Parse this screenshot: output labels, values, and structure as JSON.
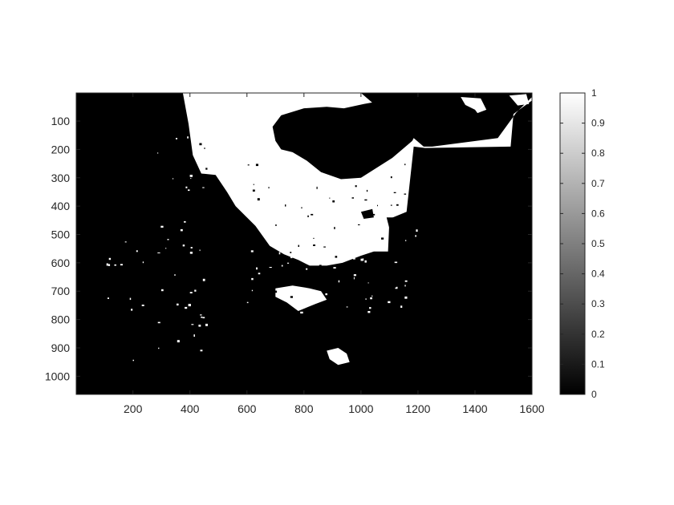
{
  "chart_data": {
    "type": "heatmap",
    "colormap": "gray",
    "image_content": "binary mask, mostly black with white regions in the upper center",
    "xlim": [
      1,
      1600
    ],
    "ylim": [
      1,
      1064
    ],
    "y_direction": "reverse",
    "x_ticks": [
      "200",
      "400",
      "600",
      "800",
      "1000",
      "1200",
      "1400",
      "1600"
    ],
    "y_ticks": [
      "100",
      "200",
      "300",
      "400",
      "500",
      "600",
      "700",
      "800",
      "900",
      "1000"
    ],
    "colorbar": {
      "range": [
        0,
        1
      ],
      "ticks": [
        "0",
        "0.1",
        "0.2",
        "0.3",
        "0.4",
        "0.5",
        "0.6",
        "0.7",
        "0.8",
        "0.9",
        "1"
      ]
    },
    "x_tick_values": [
      200,
      400,
      600,
      800,
      1000,
      1200,
      1400,
      1600
    ],
    "y_tick_values": [
      100,
      200,
      300,
      400,
      500,
      600,
      700,
      800,
      900,
      1000
    ],
    "colorbar_tick_values": [
      0,
      0.1,
      0.2,
      0.3,
      0.4,
      0.5,
      0.6,
      0.7,
      0.8,
      0.9,
      1
    ],
    "white_regions": [
      {
        "name": "upper-white-region",
        "points": [
          [
            375,
            1
          ],
          [
            1000,
            1
          ],
          [
            1220,
            190
          ],
          [
            1250,
            190
          ],
          [
            1480,
            160
          ],
          [
            1545,
            70
          ],
          [
            1600,
            15
          ],
          [
            1600,
            1
          ],
          [
            1610,
            1
          ],
          [
            1610,
            20
          ],
          [
            1535,
            75
          ],
          [
            1525,
            190
          ],
          [
            1225,
            195
          ],
          [
            1185,
            190
          ],
          [
            1160,
            420
          ],
          [
            1100,
            445
          ],
          [
            1095,
            560
          ],
          [
            1045,
            560
          ],
          [
            1000,
            575
          ],
          [
            935,
            600
          ],
          [
            880,
            610
          ],
          [
            820,
            610
          ],
          [
            780,
            590
          ],
          [
            730,
            570
          ],
          [
            680,
            540
          ],
          [
            630,
            470
          ],
          [
            560,
            400
          ],
          [
            530,
            350
          ],
          [
            490,
            290
          ],
          [
            440,
            285
          ],
          [
            410,
            220
          ],
          [
            395,
            110
          ],
          [
            375,
            1
          ]
        ]
      },
      {
        "name": "white-blob-1",
        "points": [
          [
            700,
            690
          ],
          [
            760,
            680
          ],
          [
            820,
            690
          ],
          [
            860,
            700
          ],
          [
            880,
            730
          ],
          [
            840,
            745
          ],
          [
            780,
            770
          ],
          [
            740,
            740
          ],
          [
            700,
            720
          ]
        ]
      },
      {
        "name": "white-blob-2",
        "points": [
          [
            880,
            910
          ],
          [
            920,
            900
          ],
          [
            950,
            920
          ],
          [
            960,
            950
          ],
          [
            920,
            960
          ],
          [
            890,
            940
          ]
        ]
      },
      {
        "name": "white-blob-3",
        "points": [
          [
            1350,
            15
          ],
          [
            1420,
            20
          ],
          [
            1440,
            60
          ],
          [
            1400,
            75
          ],
          [
            1370,
            50
          ]
        ]
      },
      {
        "name": "white-blob-4",
        "points": [
          [
            1520,
            10
          ],
          [
            1580,
            5
          ],
          [
            1590,
            40
          ],
          [
            1550,
            45
          ]
        ]
      }
    ],
    "black_holes": [
      {
        "name": "black-hole-1",
        "points": [
          [
            720,
            80
          ],
          [
            800,
            55
          ],
          [
            880,
            50
          ],
          [
            940,
            55
          ],
          [
            1010,
            40
          ],
          [
            1090,
            25
          ],
          [
            1150,
            30
          ],
          [
            1200,
            60
          ],
          [
            1210,
            110
          ],
          [
            1180,
            170
          ],
          [
            1110,
            230
          ],
          [
            1000,
            300
          ],
          [
            930,
            305
          ],
          [
            860,
            280
          ],
          [
            810,
            240
          ],
          [
            760,
            210
          ],
          [
            720,
            200
          ],
          [
            700,
            170
          ],
          [
            690,
            120
          ]
        ]
      },
      {
        "name": "black-hole-2",
        "points": [
          [
            1340,
            30
          ],
          [
            1400,
            60
          ],
          [
            1440,
            115
          ],
          [
            1410,
            160
          ],
          [
            1365,
            150
          ],
          [
            1340,
            100
          ]
        ]
      },
      {
        "name": "black-hole-3",
        "points": [
          [
            1060,
            30
          ],
          [
            1100,
            50
          ],
          [
            1080,
            80
          ],
          [
            1050,
            70
          ]
        ]
      },
      {
        "name": "black-hole-4",
        "points": [
          [
            1000,
            420
          ],
          [
            1040,
            410
          ],
          [
            1045,
            440
          ],
          [
            1010,
            445
          ]
        ]
      },
      {
        "name": "black-hole-5",
        "points": [
          [
            1090,
            440
          ],
          [
            1150,
            440
          ],
          [
            1160,
            480
          ],
          [
            1100,
            480
          ]
        ]
      }
    ]
  }
}
